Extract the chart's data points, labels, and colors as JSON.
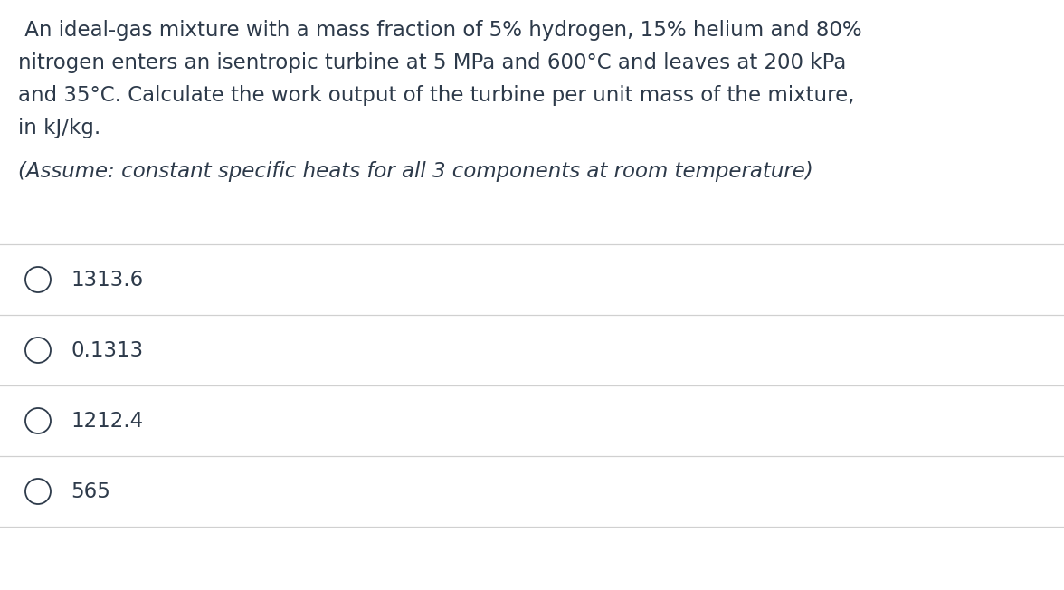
{
  "background_color": "#ffffff",
  "question_text_lines": [
    " An ideal-gas mixture with a mass fraction of 5% hydrogen, 15% helium and 80%",
    "nitrogen enters an isentropic turbine at 5 MPa and 600°C and leaves at 200 kPa",
    "and 35°C. Calculate the work output of the turbine per unit mass of the mixture,",
    "in kJ/kg."
  ],
  "assumption_text": "(Assume: constant specific heats for all 3 components at room temperature)",
  "options": [
    "1313.6",
    "0.1313",
    "1212.4",
    "565"
  ],
  "text_color": "#2d3a4a",
  "question_fontsize": 16.5,
  "assumption_fontsize": 16.5,
  "option_fontsize": 16.5,
  "separator_color": "#d0d0d0",
  "fig_width": 11.76,
  "fig_height": 6.52
}
